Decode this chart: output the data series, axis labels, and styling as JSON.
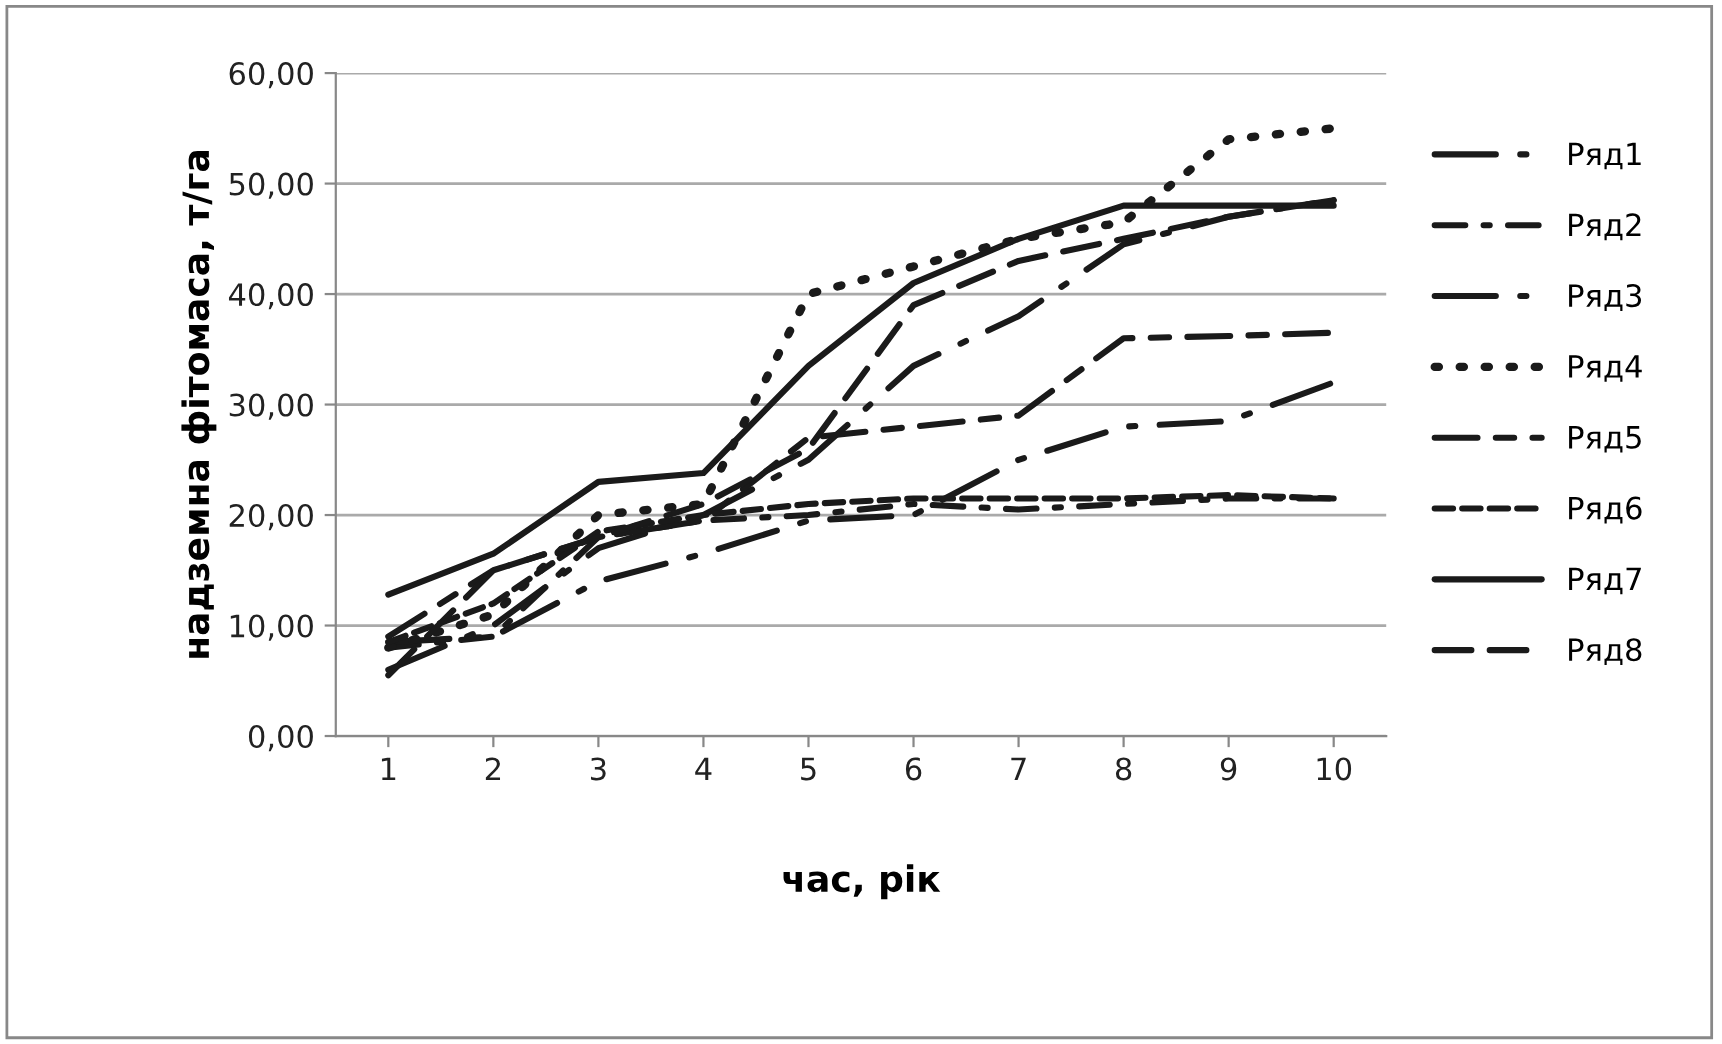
{
  "chart_data": {
    "type": "line",
    "xlabel": "час, рік",
    "ylabel": "надземна фітомаса, т/га",
    "categories": [
      "1",
      "2",
      "3",
      "4",
      "5",
      "6",
      "7",
      "8",
      "9",
      "10"
    ],
    "ylim": [
      0,
      60
    ],
    "yticks": [
      {
        "value": 0,
        "label": "0,00"
      },
      {
        "value": 10,
        "label": "10,00"
      },
      {
        "value": 20,
        "label": "20,00"
      },
      {
        "value": 30,
        "label": "30,00"
      },
      {
        "value": 40,
        "label": "40,00"
      },
      {
        "value": 50,
        "label": "50,00"
      },
      {
        "value": 60,
        "label": "60,00"
      }
    ],
    "grid": "y",
    "legend": "right",
    "marker": "none",
    "series": [
      {
        "name": "Ряд1",
        "color": "#1a1a1a",
        "line_style": "longdashdot",
        "values": [
          6,
          10,
          17,
          20,
          25,
          33.5,
          38,
          44.5,
          47,
          48.5
        ]
      },
      {
        "name": "Ряд2",
        "color": "#1a1a1a",
        "line_style": "dashdot",
        "values": [
          8,
          9,
          18,
          19.5,
          20,
          21,
          20.5,
          21,
          21.5,
          21.5
        ]
      },
      {
        "name": "Ряд3",
        "color": "#1a1a1a",
        "line_style": "longdashdot",
        "values": [
          8.5,
          9,
          14,
          16.5,
          19.5,
          20,
          25,
          28,
          28.5,
          32
        ]
      },
      {
        "name": "Ряд4",
        "color": "#1a1a1a",
        "line_style": "dotted",
        "values": [
          8,
          11,
          20,
          21,
          40,
          42.5,
          45,
          46.5,
          54,
          55
        ]
      },
      {
        "name": "Ряд5",
        "color": "#1a1a1a",
        "line_style": "longdashshort",
        "values": [
          9,
          15,
          18,
          19.5,
          27,
          28,
          29,
          36,
          36.2,
          36.5
        ]
      },
      {
        "name": "Ряд6",
        "color": "#1a1a1a",
        "line_style": "shortdash",
        "values": [
          8.5,
          12,
          18.5,
          20,
          21,
          21.5,
          21.5,
          21.5,
          21.8,
          21.5
        ]
      },
      {
        "name": "Ряд7",
        "color": "#1a1a1a",
        "line_style": "solid",
        "values": [
          12.8,
          16.5,
          23,
          23.8,
          33.5,
          41,
          45,
          48,
          48,
          48
        ]
      },
      {
        "name": "Ряд8",
        "color": "#1a1a1a",
        "line_style": "dashed",
        "values": [
          5.5,
          15,
          18,
          21,
          26,
          39,
          43,
          45,
          47,
          48.5
        ]
      }
    ]
  }
}
